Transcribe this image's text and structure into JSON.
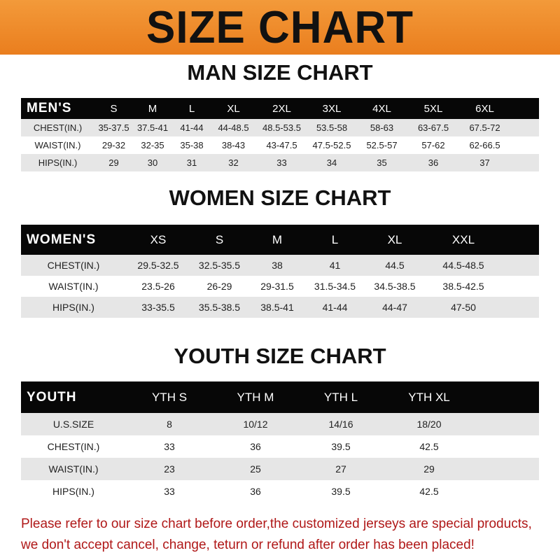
{
  "banner": "SIZE CHART",
  "men": {
    "title": "MAN SIZE CHART",
    "header": [
      "MEN'S",
      "S",
      "M",
      "L",
      "XL",
      "2XL",
      "3XL",
      "4XL",
      "5XL",
      "6XL"
    ],
    "rows": [
      [
        "CHEST(IN.)",
        "35-37.5",
        "37.5-41",
        "41-44",
        "44-48.5",
        "48.5-53.5",
        "53.5-58",
        "58-63",
        "63-67.5",
        "67.5-72"
      ],
      [
        "WAIST(IN.)",
        "29-32",
        "32-35",
        "35-38",
        "38-43",
        "43-47.5",
        "47.5-52.5",
        "52.5-57",
        "57-62",
        "62-66.5"
      ],
      [
        "HIPS(IN.)",
        "29",
        "30",
        "31",
        "32",
        "33",
        "34",
        "35",
        "36",
        "37"
      ]
    ]
  },
  "women": {
    "title": "WOMEN SIZE CHART",
    "header": [
      "WOMEN'S",
      "XS",
      "S",
      "M",
      "L",
      "XL",
      "XXL"
    ],
    "rows": [
      [
        "CHEST(IN.)",
        "29.5-32.5",
        "32.5-35.5",
        "38",
        "41",
        "44.5",
        "44.5-48.5"
      ],
      [
        "WAIST(IN.)",
        "23.5-26",
        "26-29",
        "29-31.5",
        "31.5-34.5",
        "34.5-38.5",
        "38.5-42.5"
      ],
      [
        "HIPS(IN.)",
        "33-35.5",
        "35.5-38.5",
        "38.5-41",
        "41-44",
        "44-47",
        "47-50"
      ]
    ]
  },
  "youth": {
    "title": "YOUTH SIZE CHART",
    "header": [
      "YOUTH",
      "YTH S",
      "YTH M",
      "YTH L",
      "YTH XL"
    ],
    "rows": [
      [
        "U.S.SIZE",
        "8",
        "10/12",
        "14/16",
        "18/20"
      ],
      [
        "CHEST(IN.)",
        "33",
        "36",
        "39.5",
        "42.5"
      ],
      [
        "WAIST(IN.)",
        "23",
        "25",
        "27",
        "29"
      ],
      [
        "HIPS(IN.)",
        "33",
        "36",
        "39.5",
        "42.5"
      ]
    ]
  },
  "note": {
    "line1": "Please refer to our size chart before order,the customized jerseys are special products,",
    "line2": "we don't accept cancel, change, teturn or refund after order has been placed!"
  },
  "colors": {
    "banner": "#ee8a2a",
    "header_row": "#070707",
    "stripe": "#e6e6e6",
    "note": "#b01818"
  }
}
